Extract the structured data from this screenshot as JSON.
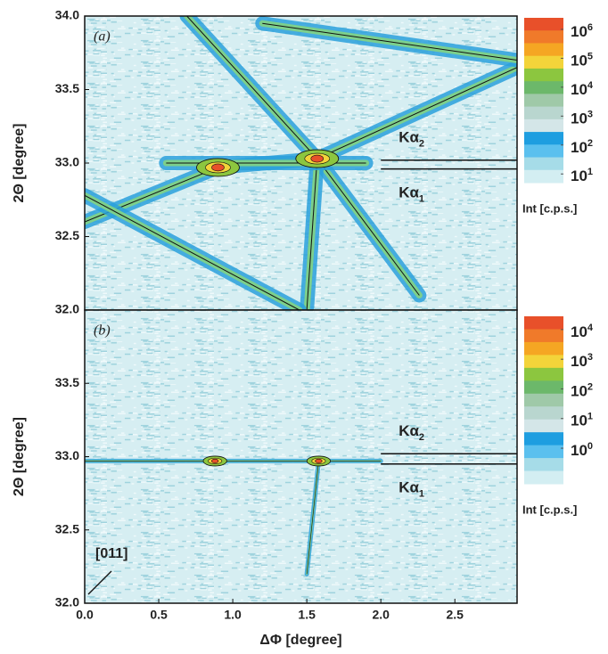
{
  "chart_data": [
    {
      "type": "heatmap",
      "panel_label": "(a)",
      "ylabel": "2Θ [degree]",
      "xlim": [
        0,
        2.92
      ],
      "ylim": [
        32,
        34
      ],
      "yticks": [
        {
          "value": 32,
          "label": "32.0"
        },
        32.5,
        {
          "value": 33,
          "label": "33.0"
        },
        33.5,
        {
          "value": 34,
          "label": "34.0"
        }
      ],
      "colorbar": {
        "title": "Int [c.p.s.]",
        "log": true,
        "clim": [
          5,
          2500000
        ],
        "colors": [
          "#e8502a",
          "#f07a2a",
          "#f5a623",
          "#f3d43a",
          "#8cc63f",
          "#6cb86a",
          "#9fc9a8",
          "#b9d6cf",
          "#d4e6e8",
          "#1e9ee0",
          "#5bc0ee",
          "#a6dce8",
          "#d3eef2"
        ],
        "ticks": [
          {
            "value": 1000000,
            "base": "10",
            "exponent": "6"
          },
          {
            "value": 100000,
            "base": "10",
            "exponent": "5"
          },
          {
            "value": 10000,
            "base": "10",
            "exponent": "4"
          },
          {
            "value": 1000,
            "base": "10",
            "exponent": "3"
          },
          {
            "value": 100,
            "base": "10",
            "exponent": "2"
          },
          {
            "value": 10,
            "base": "10",
            "exponent": "1"
          }
        ]
      },
      "streaks": [
        {
          "x": [
            0.69,
            1.57,
            2.26
          ],
          "y": [
            34.0,
            33.03,
            32.1
          ]
        },
        {
          "x": [
            1.57,
            1.5
          ],
          "y": [
            33.03,
            32.0
          ]
        },
        {
          "x": [
            0.0,
            0.9,
            1.57,
            2.92
          ],
          "y": [
            32.6,
            32.97,
            33.03,
            33.65
          ]
        },
        {
          "x": [
            0.0,
            1.45
          ],
          "y": [
            32.78,
            32.0
          ]
        },
        {
          "x": [
            0.55,
            1.9
          ],
          "y": [
            33.0,
            33.0
          ]
        },
        {
          "x": [
            1.2,
            2.92
          ],
          "y": [
            33.95,
            33.7
          ]
        }
      ],
      "peaks": {
        "x": [
          0.9,
          1.57
        ],
        "y": [
          32.97,
          33.03
        ]
      },
      "lines": [
        {
          "text": "Kα",
          "sub": "2",
          "y": 33.02,
          "x": [
            2.0,
            2.92
          ]
        },
        {
          "text": "Kα",
          "sub": "1",
          "y": 32.96,
          "x": [
            2.0,
            2.92
          ]
        }
      ]
    },
    {
      "type": "heatmap",
      "panel_label": "(b)",
      "ylabel": "2Θ [degree]",
      "xlabel": "ΔΦ [degree]",
      "xlim": [
        0,
        2.92
      ],
      "ylim": [
        32,
        34
      ],
      "xticks": [
        {
          "value": 0,
          "label": "0.0"
        },
        0.5,
        {
          "value": 1,
          "label": "1.0"
        },
        1.5,
        {
          "value": 2,
          "label": "2.0"
        },
        2.5
      ],
      "yticks": [
        {
          "value": 32,
          "label": "32.0"
        },
        32.5,
        {
          "value": 33,
          "label": "33.0"
        },
        33.5
      ],
      "colorbar": {
        "title": "Int [c.p.s.]",
        "log": true,
        "clim": [
          0.063,
          28000
        ],
        "colors": [
          "#e8502a",
          "#f07a2a",
          "#f5a623",
          "#f3d43a",
          "#8cc63f",
          "#6cb86a",
          "#9fc9a8",
          "#b9d6cf",
          "#d4e6e8",
          "#1e9ee0",
          "#5bc0ee",
          "#a6dce8",
          "#d3eef2"
        ],
        "ticks": [
          {
            "value": 10000,
            "base": "10",
            "exponent": "4"
          },
          {
            "value": 1000,
            "base": "10",
            "exponent": "3"
          },
          {
            "value": 100,
            "base": "10",
            "exponent": "2"
          },
          {
            "value": 10,
            "base": "10",
            "exponent": "1"
          },
          {
            "value": 1,
            "base": "10",
            "exponent": "0"
          }
        ]
      },
      "streaks": [
        {
          "x": [
            0.0,
            2.0
          ],
          "y": [
            32.97,
            32.97
          ]
        },
        {
          "x": [
            1.58,
            1.5
          ],
          "y": [
            32.97,
            32.2
          ]
        }
      ],
      "peaks": {
        "x": [
          0.88,
          1.58
        ],
        "y": [
          32.97,
          32.97
        ]
      },
      "lines": [
        {
          "text": "Kα",
          "sub": "2",
          "y": 33.02,
          "x": [
            2.0,
            2.92
          ]
        },
        {
          "text": "Kα",
          "sub": "1",
          "y": 32.95,
          "x": [
            2.0,
            2.92
          ]
        }
      ],
      "annotation": "[011]"
    }
  ]
}
